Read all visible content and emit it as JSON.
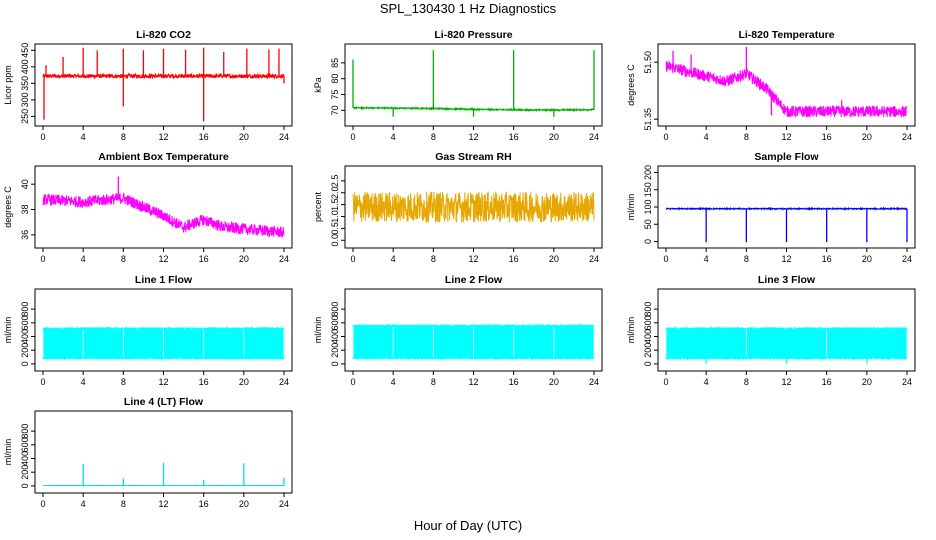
{
  "page": {
    "title": "SPL_130430  1 Hz Diagnostics",
    "xcaption": "Hour of Day (UTC)"
  },
  "chart_data": [
    {
      "type": "line",
      "title": "Li-820 CO2",
      "ylabel": "Licor ppm",
      "color": "#ff0000",
      "xlim": [
        0,
        24
      ],
      "ylim": [
        230,
        460
      ],
      "xticks": [
        "0",
        "4",
        "8",
        "12",
        "16",
        "20",
        "24"
      ],
      "yticks": [
        250,
        300,
        350,
        400,
        450
      ],
      "ytick_labels": [
        "250",
        "300",
        "350",
        "400",
        "450"
      ],
      "baseline": [
        [
          0,
          372
        ],
        [
          24,
          372
        ]
      ],
      "noise": 12,
      "spikes_up": [
        [
          0.3,
          405
        ],
        [
          2,
          430
        ],
        [
          4,
          458
        ],
        [
          5.4,
          450
        ],
        [
          8,
          455
        ],
        [
          10,
          450
        ],
        [
          12,
          455
        ],
        [
          14.2,
          452
        ],
        [
          16,
          458
        ],
        [
          18,
          445
        ],
        [
          20.3,
          455
        ],
        [
          22.5,
          452
        ],
        [
          23.5,
          455
        ]
      ],
      "spikes_down": [
        [
          0.1,
          240
        ],
        [
          8,
          280
        ],
        [
          16,
          235
        ],
        [
          24,
          350
        ]
      ]
    },
    {
      "type": "line",
      "title": "Li-820 Pressure",
      "ylabel": "kPa",
      "color": "#00b000",
      "xlim": [
        0,
        24
      ],
      "ylim": [
        66,
        90
      ],
      "xticks": [
        "0",
        "4",
        "8",
        "12",
        "16",
        "20",
        "24"
      ],
      "yticks": [
        70,
        75,
        80,
        85
      ],
      "ytick_labels": [
        "70",
        "75",
        "80",
        "85"
      ],
      "baseline": [
        [
          0,
          70.8
        ],
        [
          8,
          70.6
        ],
        [
          12,
          70.3
        ],
        [
          18,
          70.1
        ],
        [
          24,
          70.2
        ]
      ],
      "noise": 0.4,
      "spikes_up": [
        [
          0,
          86
        ],
        [
          8,
          89
        ],
        [
          16,
          89
        ],
        [
          24,
          89
        ]
      ],
      "spikes_down": [
        [
          4,
          68
        ],
        [
          12,
          68
        ],
        [
          20,
          68
        ]
      ]
    },
    {
      "type": "line",
      "title": "Li-820 Temperature",
      "ylabel": "degrees C",
      "color": "#ff00ff",
      "xlim": [
        0,
        24
      ],
      "ylim": [
        51.34,
        51.54
      ],
      "xticks": [
        "0",
        "4",
        "8",
        "12",
        "16",
        "20",
        "24"
      ],
      "yticks": [
        51.35,
        51.5
      ],
      "ytick_labels": [
        "51.35",
        "51.50"
      ],
      "baseline": [
        [
          0,
          51.49
        ],
        [
          3,
          51.47
        ],
        [
          6,
          51.45
        ],
        [
          8,
          51.47
        ],
        [
          10,
          51.43
        ],
        [
          12,
          51.37
        ],
        [
          24,
          51.37
        ]
      ],
      "noise": 0.03,
      "spikes_up": [
        [
          0.7,
          51.53
        ],
        [
          2.5,
          51.52
        ],
        [
          8,
          51.54
        ],
        [
          17.5,
          51.4
        ]
      ],
      "spikes_down": [
        [
          10.5,
          51.36
        ]
      ]
    },
    {
      "type": "line",
      "title": "Ambient Box Temperature",
      "ylabel": "degrees C",
      "color": "#ff00ff",
      "xlim": [
        0,
        24
      ],
      "ylim": [
        35.2,
        41.2
      ],
      "xticks": [
        "0",
        "4",
        "8",
        "12",
        "16",
        "20",
        "24"
      ],
      "yticks": [
        36,
        38,
        40
      ],
      "ytick_labels": [
        "36",
        "38",
        "40"
      ],
      "baseline": [
        [
          0,
          38.8
        ],
        [
          4,
          38.6
        ],
        [
          8,
          38.9
        ],
        [
          12,
          37.5
        ],
        [
          14,
          36.6
        ],
        [
          16,
          37.2
        ],
        [
          18,
          36.6
        ],
        [
          24,
          36.2
        ]
      ],
      "noise": 0.9,
      "spikes_up": [
        [
          7.5,
          40.6
        ]
      ],
      "spikes_down": []
    },
    {
      "type": "line",
      "title": "Gas Stream RH",
      "ylabel": "percent",
      "color": "#e6a800",
      "xlim": [
        0,
        24
      ],
      "ylim": [
        -0.2,
        3.0
      ],
      "xticks": [
        "0",
        "4",
        "8",
        "12",
        "16",
        "20",
        "24"
      ],
      "yticks": [
        0.0,
        0.5,
        1.0,
        1.5,
        2.0,
        2.5
      ],
      "ytick_labels": [
        "0.0",
        "0.5",
        "1.0",
        "1.5",
        "2.0",
        "2.5"
      ],
      "baseline": [
        [
          0,
          1.4
        ],
        [
          24,
          1.4
        ]
      ],
      "noise": 1.3,
      "spikes_up": [],
      "spikes_down": []
    },
    {
      "type": "line",
      "title": "Sample Flow",
      "ylabel": "ml/min",
      "color": "#0000ff",
      "xlim": [
        0,
        24
      ],
      "ylim": [
        -10,
        210
      ],
      "xticks": [
        "0",
        "4",
        "8",
        "12",
        "16",
        "20",
        "24"
      ],
      "yticks": [
        0,
        50,
        100,
        150,
        200
      ],
      "ytick_labels": [
        "0",
        "50",
        "100",
        "150",
        "200"
      ],
      "baseline": [
        [
          0,
          95
        ],
        [
          24,
          95
        ]
      ],
      "noise": 3,
      "spikes_up": [],
      "spikes_down": [
        [
          4,
          -2
        ],
        [
          8,
          -2
        ],
        [
          12,
          -2
        ],
        [
          16,
          -2
        ],
        [
          20,
          -2
        ],
        [
          24,
          -2
        ]
      ]
    },
    {
      "type": "line",
      "title": "Line 1 Flow",
      "ylabel": "ml/min",
      "color": "#00ffff",
      "xlim": [
        0,
        24
      ],
      "ylim": [
        -60,
        1050
      ],
      "xticks": [
        "0",
        "4",
        "8",
        "12",
        "16",
        "20",
        "24"
      ],
      "yticks": [
        0,
        200,
        400,
        600,
        800
      ],
      "ytick_labels": [
        "0",
        "200",
        "400",
        "600",
        "800"
      ],
      "band": [
        [
          0,
          80,
          520
        ],
        [
          24,
          80,
          520
        ]
      ],
      "spikes_up": [],
      "spikes_down": []
    },
    {
      "type": "line",
      "title": "Line 2 Flow",
      "ylabel": "ml/min",
      "color": "#00ffff",
      "xlim": [
        0,
        24
      ],
      "ylim": [
        -60,
        1050
      ],
      "xticks": [
        "0",
        "4",
        "8",
        "12",
        "16",
        "20",
        "24"
      ],
      "yticks": [
        0,
        200,
        400,
        600,
        800
      ],
      "ytick_labels": [
        "0",
        "200",
        "400",
        "600",
        "800"
      ],
      "band": [
        [
          0,
          80,
          560
        ],
        [
          24,
          80,
          560
        ]
      ],
      "spikes_up": [],
      "spikes_down": []
    },
    {
      "type": "line",
      "title": "Line 3 Flow",
      "ylabel": "ml/min",
      "color": "#00ffff",
      "xlim": [
        0,
        24
      ],
      "ylim": [
        -60,
        1050
      ],
      "xticks": [
        "0",
        "4",
        "8",
        "12",
        "16",
        "20",
        "24"
      ],
      "yticks": [
        0,
        200,
        400,
        600,
        800
      ],
      "ytick_labels": [
        "0",
        "200",
        "400",
        "600",
        "800"
      ],
      "band": [
        [
          0,
          80,
          520
        ],
        [
          24,
          80,
          520
        ]
      ],
      "spikes_up": [],
      "spikes_down": [
        [
          4,
          0
        ],
        [
          12,
          0
        ],
        [
          20,
          0
        ]
      ]
    },
    {
      "type": "line",
      "title": "Line 4 (LT) Flow",
      "ylabel": "ml/min",
      "color": "#00e0e0",
      "xlim": [
        0,
        24
      ],
      "ylim": [
        -60,
        1050
      ],
      "xticks": [
        "0",
        "4",
        "8",
        "12",
        "16",
        "20",
        "24"
      ],
      "yticks": [
        0,
        200,
        400,
        600,
        800
      ],
      "ytick_labels": [
        "0",
        "200",
        "400",
        "600",
        "800"
      ],
      "baseline": [
        [
          0,
          5
        ],
        [
          24,
          5
        ]
      ],
      "noise": 3,
      "spikes_up": [
        [
          4,
          320
        ],
        [
          8,
          110
        ],
        [
          12,
          340
        ],
        [
          16,
          90
        ],
        [
          20,
          330
        ],
        [
          24,
          120
        ]
      ],
      "spikes_down": []
    }
  ]
}
